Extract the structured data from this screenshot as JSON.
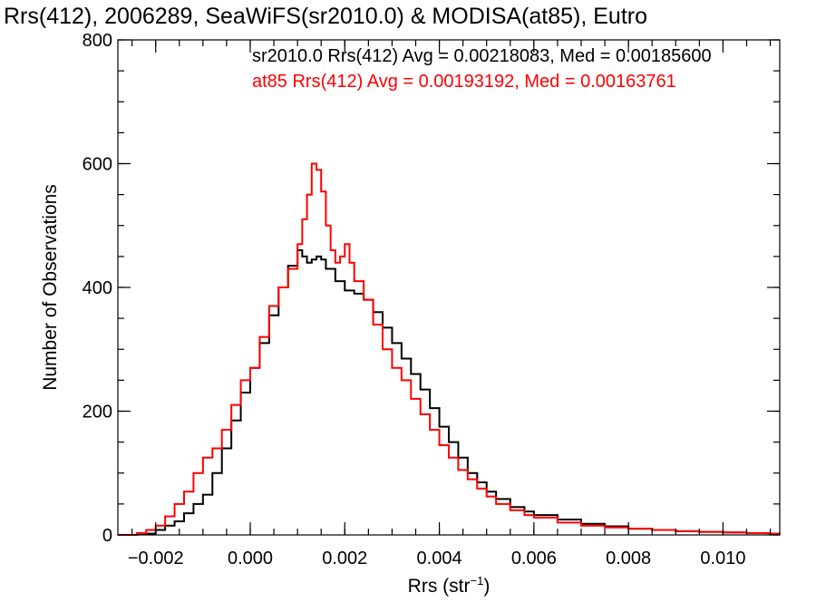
{
  "chart_data": {
    "type": "histogram-step",
    "title": "Rrs(412), 2006289, SeaWiFS(sr2010.0) & MODISA(at85), Eutro",
    "xlabel": "Rrs (str",
    "xlabel_sup": "−1",
    "xlabel_end": ")",
    "ylabel": "Number of Observations",
    "xlim": [
      -0.0028,
      0.0112
    ],
    "ylim": [
      0,
      800
    ],
    "x_ticks": [
      -0.002,
      0.0,
      0.002,
      0.004,
      0.006,
      0.008,
      0.01
    ],
    "x_tick_labels": [
      "−0.002",
      "0.000",
      "0.002",
      "0.004",
      "0.006",
      "0.008",
      "0.010"
    ],
    "y_ticks": [
      0,
      200,
      400,
      600,
      800
    ],
    "y_tick_labels": [
      "0",
      "200",
      "400",
      "600",
      "800"
    ],
    "x_minor_step": 0.0005,
    "y_minor_step": 50,
    "annotations": [
      {
        "text": "sr2010.0 Rrs(412) Avg = 0.00218083, Med = 0.00185600",
        "color": "#000000"
      },
      {
        "text": "at85 Rrs(412) Avg = 0.00193192, Med = 0.00163761",
        "color": "#ff0000"
      }
    ],
    "series": [
      {
        "color": "#000000",
        "x": [
          -0.0028,
          -0.0024,
          -0.002,
          -0.0018,
          -0.0016,
          -0.0014,
          -0.0012,
          -0.001,
          -0.0008,
          -0.0006,
          -0.0004,
          -0.0002,
          0.0,
          0.0002,
          0.0004,
          0.0006,
          0.0008,
          0.001,
          0.0011,
          0.0012,
          0.0013,
          0.0014,
          0.0015,
          0.0016,
          0.0018,
          0.002,
          0.0022,
          0.0024,
          0.0026,
          0.0028,
          0.003,
          0.0032,
          0.0034,
          0.0036,
          0.0038,
          0.004,
          0.0042,
          0.0044,
          0.0046,
          0.0048,
          0.005,
          0.0052,
          0.0055,
          0.0058,
          0.006,
          0.0065,
          0.007,
          0.0075,
          0.008,
          0.0085,
          0.009,
          0.0095,
          0.01,
          0.0105,
          0.011,
          0.0112
        ],
        "y": [
          0,
          2,
          8,
          15,
          22,
          35,
          50,
          65,
          100,
          140,
          185,
          230,
          270,
          310,
          355,
          400,
          435,
          460,
          450,
          440,
          445,
          450,
          445,
          430,
          410,
          395,
          390,
          380,
          360,
          335,
          310,
          285,
          260,
          235,
          205,
          175,
          150,
          125,
          100,
          85,
          70,
          58,
          45,
          38,
          32,
          25,
          18,
          14,
          10,
          8,
          6,
          5,
          4,
          3,
          2,
          1
        ]
      },
      {
        "color": "#ff0000",
        "x": [
          -0.0028,
          -0.0024,
          -0.0022,
          -0.002,
          -0.0018,
          -0.0016,
          -0.0014,
          -0.0012,
          -0.001,
          -0.0008,
          -0.0006,
          -0.0004,
          -0.0002,
          0.0,
          0.0002,
          0.0004,
          0.0006,
          0.0008,
          0.001,
          0.0011,
          0.0012,
          0.0013,
          0.0014,
          0.0015,
          0.0016,
          0.0017,
          0.0018,
          0.0019,
          0.002,
          0.0021,
          0.0022,
          0.0024,
          0.0026,
          0.0028,
          0.003,
          0.0032,
          0.0034,
          0.0036,
          0.0038,
          0.004,
          0.0042,
          0.0044,
          0.0046,
          0.0048,
          0.005,
          0.0052,
          0.0055,
          0.0058,
          0.006,
          0.0065,
          0.007,
          0.0075,
          0.008,
          0.0085,
          0.009,
          0.0095,
          0.01,
          0.0105,
          0.011,
          0.0112
        ],
        "y": [
          0,
          3,
          8,
          15,
          30,
          50,
          70,
          100,
          125,
          140,
          170,
          210,
          250,
          270,
          320,
          370,
          400,
          430,
          470,
          510,
          550,
          600,
          590,
          555,
          500,
          460,
          440,
          450,
          470,
          440,
          410,
          380,
          340,
          300,
          270,
          250,
          220,
          195,
          170,
          145,
          125,
          105,
          90,
          75,
          62,
          50,
          40,
          32,
          28,
          20,
          15,
          12,
          10,
          8,
          6,
          5,
          4,
          3,
          2,
          1
        ]
      }
    ]
  }
}
